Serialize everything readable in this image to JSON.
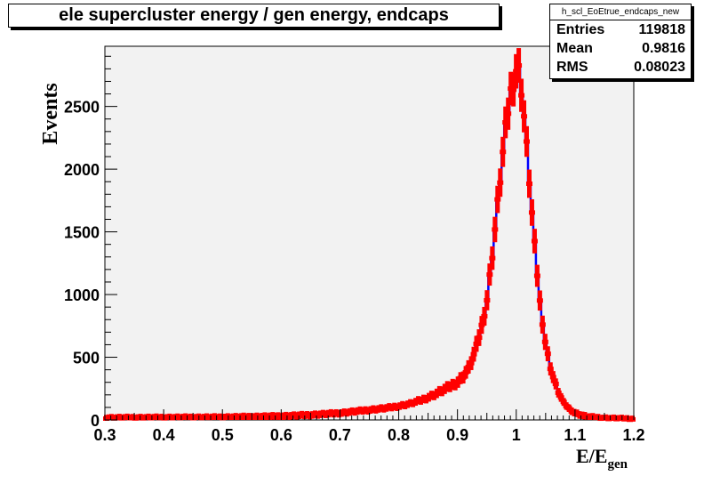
{
  "chart_data": {
    "type": "histogram",
    "title": "ele supercluster energy / gen energy, endcaps",
    "xlabel": "E/E",
    "xlabel_sub": "gen",
    "ylabel": "Events",
    "xlim": [
      0.3,
      1.2
    ],
    "ylim": [
      0,
      2980
    ],
    "x_ticks": [
      "0.3",
      "0.4",
      "0.5",
      "0.6",
      "0.7",
      "0.8",
      "0.9",
      "1",
      "1.1",
      "1.2"
    ],
    "y_ticks": [
      "0",
      "500",
      "1000",
      "1500",
      "2000",
      "2500"
    ],
    "grid": false,
    "line_color": "#0000ff",
    "marker_color": "#ff0000",
    "frame_fill": "#f2f2f2",
    "bins": {
      "start": 0.3,
      "width": 0.0045
    },
    "series": [
      {
        "x": [
          0.3,
          0.5,
          0.6,
          0.65,
          0.7,
          0.72,
          0.75,
          0.78,
          0.8,
          0.82,
          0.84,
          0.86,
          0.88,
          0.9,
          0.91,
          0.92,
          0.93,
          0.94,
          0.95,
          0.96,
          0.97,
          0.98,
          0.99,
          1.0,
          1.005,
          1.01,
          1.02,
          1.03,
          1.04,
          1.05,
          1.06,
          1.07,
          1.08,
          1.09,
          1.1,
          1.12,
          1.15,
          1.2
        ],
        "y": [
          15,
          20,
          30,
          40,
          55,
          65,
          80,
          95,
          110,
          130,
          160,
          200,
          250,
          300,
          350,
          420,
          550,
          720,
          950,
          1350,
          1800,
          2250,
          2600,
          2800,
          2780,
          2600,
          2050,
          1450,
          950,
          600,
          380,
          240,
          140,
          90,
          55,
          25,
          12,
          5
        ]
      }
    ]
  },
  "stats": {
    "name": "h_scl_EoEtrue_endcaps_new",
    "entries_label": "Entries",
    "entries_value": "119818",
    "mean_label": "Mean",
    "mean_value": "0.9816",
    "rms_label": "RMS",
    "rms_value": "0.08023"
  }
}
